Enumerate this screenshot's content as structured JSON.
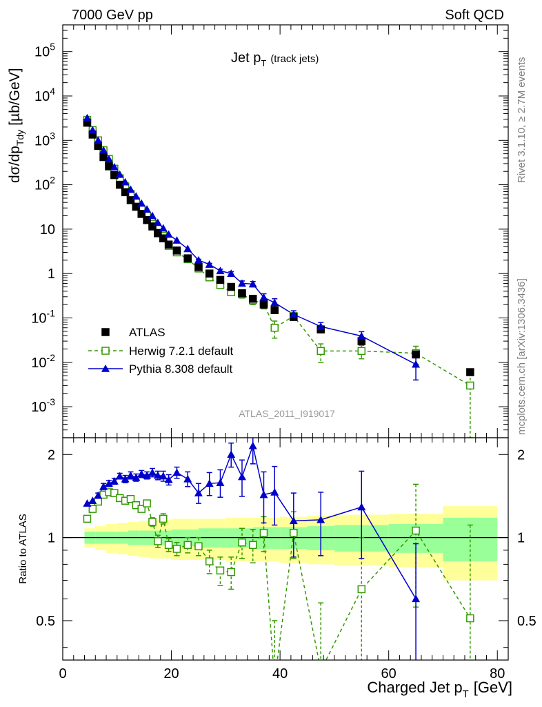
{
  "header": {
    "left": "7000 GeV pp",
    "right": "Soft QCD"
  },
  "side_text": {
    "rivet": "Rivet 3.1.10, ≥ 2.7M events",
    "mcplots": "mcplots.cern.ch [arXiv:1306.3436]"
  },
  "analysis_id": "ATLAS_2011_I919017",
  "chart_data": [
    {
      "panel": "main",
      "type": "scatter",
      "title": "Jet p_T (track jets)",
      "title_main": "Jet p",
      "title_sub": "T",
      "title_extra": "(track jets)",
      "ylabel": "dσ/dp_Tdy [µb/GeV]",
      "ylabel_main": "dσ/dp",
      "ylabel_sub": "Tdy",
      "ylabel_unit": "[µb/GeV]",
      "xlim": [
        0,
        82
      ],
      "ylim": [
        0.0002,
        400000
      ],
      "y_scale": "log",
      "y_tick_labels": [
        "10^-3",
        "10^-2",
        "10^-1",
        "1",
        "10",
        "10^2",
        "10^3",
        "10^4",
        "10^5"
      ],
      "legend_position": "lower-left",
      "series": [
        {
          "name": "ATLAS",
          "style": "data",
          "color": "#000000",
          "x": [
            4.5,
            5.5,
            6.5,
            7.5,
            8.5,
            9.5,
            10.5,
            11.5,
            12.5,
            13.5,
            14.5,
            15.5,
            16.5,
            17.5,
            18.5,
            19.5,
            21,
            23,
            25,
            27,
            29,
            31,
            33,
            35,
            37,
            39,
            42.5,
            47.5,
            55,
            65,
            75
          ],
          "y": [
            2500,
            1350,
            750,
            420,
            260,
            165,
            100,
            68,
            45,
            32,
            22,
            16,
            11.5,
            8.2,
            6.2,
            4.5,
            3.3,
            2.2,
            1.4,
            1.0,
            0.72,
            0.5,
            0.36,
            0.27,
            0.2,
            0.15,
            0.105,
            0.055,
            0.03,
            0.015,
            0.006
          ]
        },
        {
          "name": "Herwig 7.2.1 default",
          "style": "open-square-dashed",
          "color": "#339900",
          "x": [
            4.5,
            5.5,
            6.5,
            7.5,
            8.5,
            9.5,
            10.5,
            11.5,
            12.5,
            13.5,
            14.5,
            15.5,
            16.5,
            17.5,
            18.5,
            19.5,
            21,
            23,
            25,
            27,
            29,
            31,
            33,
            35,
            37,
            39,
            42.5,
            47.5,
            55,
            65,
            75
          ],
          "y": [
            2900,
            1700,
            1000,
            600,
            380,
            230,
            140,
            92,
            62,
            42,
            28,
            20,
            13,
            8,
            7,
            4.2,
            3.0,
            2.1,
            1.3,
            0.82,
            0.55,
            0.38,
            0.34,
            0.25,
            0.21,
            0.06,
            0.11,
            0.018,
            0.018,
            0.016,
            0.003
          ],
          "y_err": [
            0,
            0,
            0,
            0,
            0,
            0,
            0,
            0,
            0,
            0,
            0,
            0,
            0,
            0,
            0,
            0,
            0,
            0,
            0.1,
            0.1,
            0.08,
            0.06,
            0.06,
            0.05,
            0.05,
            0.025,
            0.02,
            0.008,
            0.006,
            0.007,
            0.0028
          ]
        },
        {
          "name": "Pythia 8.308 default",
          "style": "filled-triangle-solid",
          "color": "#0000cc",
          "x": [
            4.5,
            5.5,
            6.5,
            7.5,
            8.5,
            9.5,
            10.5,
            11.5,
            12.5,
            13.5,
            14.5,
            15.5,
            16.5,
            17.5,
            18.5,
            19.5,
            21,
            23,
            25,
            27,
            29,
            31,
            33,
            35,
            37,
            39,
            42.5,
            47.5,
            55,
            65
          ],
          "y": [
            3200,
            1700,
            1000,
            600,
            380,
            250,
            170,
            115,
            78,
            55,
            38,
            28,
            20,
            14,
            10.5,
            7.6,
            5.6,
            3.6,
            2.0,
            1.6,
            1.15,
            1.0,
            0.6,
            0.58,
            0.29,
            0.22,
            0.12,
            0.064,
            0.039,
            0.009
          ],
          "y_err": [
            0,
            0,
            0,
            0,
            0,
            0,
            0,
            0,
            0,
            0,
            0,
            0,
            0,
            0,
            0,
            0,
            0,
            0,
            0.1,
            0.1,
            0.1,
            0.1,
            0.08,
            0.08,
            0.06,
            0.05,
            0.025,
            0.015,
            0.01,
            0.005
          ]
        }
      ]
    },
    {
      "panel": "ratio",
      "type": "line",
      "xlabel": "Charged Jet p_T [GeV]",
      "xlabel_main": "Charged Jet p",
      "xlabel_sub": "T",
      "xlabel_unit": "[GeV]",
      "ylabel": "Ratio to ATLAS",
      "xlim": [
        0,
        82
      ],
      "ylim": [
        0.36,
        2.3
      ],
      "y_scale": "log",
      "x_ticks": [
        0,
        20,
        40,
        60,
        80
      ],
      "y_ticks": [
        0.5,
        1,
        2
      ],
      "reference_line": 1,
      "uncertainty_bands": {
        "x_edges": [
          4,
          6,
          8,
          10,
          12,
          14,
          16,
          18,
          20,
          25,
          30,
          35,
          40,
          45,
          50,
          60,
          70,
          80
        ],
        "stat_half_width": [
          0.05,
          0.05,
          0.05,
          0.05,
          0.06,
          0.06,
          0.06,
          0.06,
          0.07,
          0.08,
          0.08,
          0.09,
          0.09,
          0.1,
          0.11,
          0.12,
          0.18
        ],
        "total_half_width": [
          0.08,
          0.1,
          0.12,
          0.13,
          0.14,
          0.15,
          0.16,
          0.16,
          0.17,
          0.17,
          0.18,
          0.18,
          0.19,
          0.2,
          0.21,
          0.22,
          0.3
        ],
        "stat_color": "#99ff99",
        "total_color": "#ffff99"
      },
      "series": [
        {
          "name": "Herwig 7.2.1 default",
          "color": "#339900",
          "x": [
            4.5,
            5.5,
            6.5,
            7.5,
            8.5,
            9.5,
            10.5,
            11.5,
            12.5,
            13.5,
            14.5,
            15.5,
            16.5,
            17.5,
            18.5,
            19.5,
            21,
            23,
            25,
            27,
            29,
            31,
            33,
            35,
            37,
            39,
            42.5,
            47.5,
            55,
            65,
            75
          ],
          "y": [
            1.17,
            1.27,
            1.35,
            1.43,
            1.46,
            1.45,
            1.39,
            1.36,
            1.38,
            1.31,
            1.27,
            1.33,
            1.14,
            0.97,
            1.17,
            0.94,
            0.91,
            0.94,
            0.93,
            0.82,
            0.76,
            0.75,
            0.96,
            0.94,
            1.04,
            0.3,
            1.04,
            0.33,
            0.65,
            1.06,
            0.51
          ],
          "y_err": [
            0,
            0,
            0,
            0,
            0,
            0,
            0,
            0,
            0,
            0,
            0.03,
            0.03,
            0.04,
            0.05,
            0.05,
            0.05,
            0.05,
            0.06,
            0.07,
            0.08,
            0.09,
            0.1,
            0.12,
            0.13,
            0.15,
            0.2,
            0.2,
            0.25,
            0.35,
            0.5,
            0.6
          ]
        },
        {
          "name": "Pythia 8.308 default",
          "color": "#0000cc",
          "x": [
            4.5,
            5.5,
            6.5,
            7.5,
            8.5,
            9.5,
            10.5,
            11.5,
            12.5,
            13.5,
            14.5,
            15.5,
            16.5,
            17.5,
            18.5,
            19.5,
            21,
            23,
            25,
            27,
            29,
            31,
            33,
            35,
            37,
            39,
            42.5,
            47.5,
            55,
            65
          ],
          "y": [
            1.33,
            1.36,
            1.42,
            1.53,
            1.57,
            1.6,
            1.67,
            1.63,
            1.68,
            1.65,
            1.7,
            1.68,
            1.72,
            1.68,
            1.67,
            1.62,
            1.72,
            1.63,
            1.45,
            1.57,
            1.58,
            2.0,
            1.66,
            2.15,
            1.43,
            1.46,
            1.15,
            1.16,
            1.29,
            0.6
          ],
          "y_err": [
            0,
            0,
            0.03,
            0.04,
            0.04,
            0.04,
            0.04,
            0.05,
            0.05,
            0.05,
            0.05,
            0.05,
            0.06,
            0.06,
            0.07,
            0.07,
            0.08,
            0.1,
            0.12,
            0.15,
            0.18,
            0.2,
            0.25,
            0.3,
            0.3,
            0.35,
            0.3,
            0.3,
            0.45,
            0.35
          ]
        }
      ]
    }
  ]
}
